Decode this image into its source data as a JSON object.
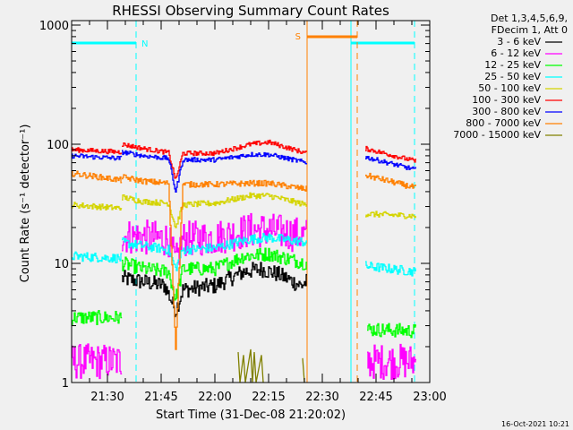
{
  "chart_data": {
    "type": "line",
    "title": "RHESSI Observing Summary Count Rates",
    "xlabel": "Start Time (31-Dec-08 21:20:02)",
    "ylabel": "Count Rate (s⁻¹ detector⁻¹)",
    "yscale": "log",
    "ylim": [
      1,
      1100
    ],
    "xlim_minutes_after_2120": [
      0,
      100
    ],
    "x_ticks": [
      {
        "t": 10,
        "label": "21:30"
      },
      {
        "t": 25,
        "label": "21:45"
      },
      {
        "t": 40,
        "label": "22:00"
      },
      {
        "t": 55,
        "label": "22:15"
      },
      {
        "t": 70,
        "label": "22:30"
      },
      {
        "t": 85,
        "label": "22:45"
      },
      {
        "t": 100,
        "label": "23:00"
      }
    ],
    "y_ticks": [
      {
        "v": 1,
        "label": "1"
      },
      {
        "v": 10,
        "label": "10"
      },
      {
        "v": 100,
        "label": "100"
      },
      {
        "v": 1000,
        "label": "1000"
      }
    ],
    "legend": {
      "placement": "right",
      "header": [
        "Det 1,3,4,5,6,9,",
        "FDecim 1, Att 0"
      ]
    },
    "series": [
      {
        "name": "3 - 6 keV",
        "color": "#000000",
        "noise": 0.07,
        "points": [
          [
            14,
            7.5
          ],
          [
            20,
            7
          ],
          [
            26,
            6.5
          ],
          [
            29,
            4
          ],
          [
            31,
            6
          ],
          [
            40,
            6.5
          ],
          [
            48,
            8.5
          ],
          [
            53,
            9
          ],
          [
            58,
            8
          ],
          [
            64,
            6.5
          ],
          [
            65.5,
            7
          ],
          null
        ]
      },
      {
        "name": "6 - 12 keV",
        "color": "#ff00ff",
        "noise": 0.15,
        "points": [
          [
            0,
            1.5
          ],
          [
            13.8,
            1.5
          ],
          null,
          [
            14,
            17
          ],
          [
            20,
            16.5
          ],
          [
            27,
            16
          ],
          [
            29,
            10
          ],
          [
            31,
            16
          ],
          [
            40,
            16.5
          ],
          [
            50,
            19
          ],
          [
            55,
            19
          ],
          [
            65.5,
            17
          ],
          null,
          [
            82.5,
            1.5
          ],
          [
            96,
            1.5
          ]
        ]
      },
      {
        "name": "12 - 25 keV",
        "color": "#00ff00",
        "noise": 0.06,
        "points": [
          [
            0,
            3.5
          ],
          [
            13.8,
            3.5
          ],
          null,
          [
            14,
            10
          ],
          [
            20,
            9
          ],
          [
            27,
            8.5
          ],
          [
            29,
            5
          ],
          [
            31,
            9
          ],
          [
            40,
            9
          ],
          [
            48,
            11.5
          ],
          [
            55,
            12
          ],
          [
            65.5,
            10
          ],
          null,
          [
            82.5,
            2.8
          ],
          [
            96,
            2.7
          ]
        ]
      },
      {
        "name": "25 - 50 keV",
        "color": "#00ffff",
        "noise": 0.04,
        "points": [
          [
            0,
            11.5
          ],
          [
            13.8,
            11
          ],
          null,
          [
            14,
            15
          ],
          [
            20,
            14
          ],
          [
            27,
            13
          ],
          [
            29,
            9
          ],
          [
            31,
            13
          ],
          [
            40,
            13.5
          ],
          [
            50,
            16
          ],
          [
            55,
            16.5
          ],
          [
            65.5,
            15
          ],
          null,
          [
            82,
            9.5
          ],
          [
            96,
            8.5
          ]
        ]
      },
      {
        "name": "50 - 100 keV",
        "color": "#d4d400",
        "noise": 0.025,
        "points": [
          [
            0,
            31
          ],
          [
            13.8,
            29
          ],
          null,
          [
            14,
            36
          ],
          [
            20,
            33
          ],
          [
            27,
            32
          ],
          [
            29,
            20
          ],
          [
            31,
            31
          ],
          [
            40,
            32
          ],
          [
            50,
            37
          ],
          [
            55,
            37
          ],
          [
            65.5,
            31
          ],
          null,
          [
            82,
            26
          ],
          [
            96,
            25
          ]
        ]
      },
      {
        "name": "100 - 300 keV",
        "color": "#ff0000",
        "noise": 0.02,
        "points": [
          [
            0,
            90
          ],
          [
            13.8,
            86
          ],
          null,
          [
            14,
            100
          ],
          [
            20,
            92
          ],
          [
            27,
            85
          ],
          [
            29,
            50
          ],
          [
            31,
            84
          ],
          [
            40,
            84
          ],
          [
            50,
            100
          ],
          [
            55,
            104
          ],
          [
            65.5,
            84
          ],
          null,
          [
            82,
            92
          ],
          [
            96,
            72
          ]
        ]
      },
      {
        "name": "300 - 800 keV",
        "color": "#0000ff",
        "noise": 0.02,
        "points": [
          [
            0,
            80
          ],
          [
            13.8,
            76
          ],
          null,
          [
            14,
            86
          ],
          [
            20,
            80
          ],
          [
            27,
            76
          ],
          [
            29,
            40
          ],
          [
            31,
            74
          ],
          [
            40,
            74
          ],
          [
            50,
            82
          ],
          [
            55,
            82
          ],
          [
            65.5,
            70
          ],
          null,
          [
            82,
            78
          ],
          [
            96,
            61
          ]
        ]
      },
      {
        "name": "800 - 7000 keV",
        "color": "#ff8000",
        "noise": 0.025,
        "points": [
          [
            0,
            57
          ],
          [
            13.8,
            50
          ],
          null,
          [
            14,
            53
          ],
          [
            20,
            49
          ],
          [
            27,
            47
          ],
          [
            29,
            2
          ],
          [
            31,
            46
          ],
          [
            40,
            46
          ],
          [
            50,
            47
          ],
          [
            55,
            47
          ],
          [
            65.5,
            42
          ],
          null,
          [
            82,
            55
          ],
          [
            96,
            43
          ]
        ]
      },
      {
        "name": "7000 - 15000 keV",
        "color": "#808000",
        "noise": 0.0,
        "points": [
          [
            46.5,
            1.8
          ],
          [
            47,
            0.9
          ],
          [
            48,
            1.7
          ],
          [
            48.5,
            0.9
          ],
          [
            50,
            1.9
          ],
          [
            50.5,
            0.9
          ],
          [
            51,
            1.8
          ],
          [
            51.5,
            0.9
          ],
          [
            53,
            1.7
          ],
          [
            53.5,
            0.9
          ],
          null,
          [
            64.5,
            1.6
          ],
          [
            65,
            0.9
          ]
        ]
      }
    ],
    "flags": [
      {
        "name": "night",
        "label": "N",
        "color": "#00ffff",
        "start": 0,
        "end": 18
      },
      {
        "name": "night",
        "label": "",
        "color": "#00ffff",
        "start": 78,
        "end": 95.75
      },
      {
        "name": "saa",
        "label": "S",
        "color": "#ff8000",
        "start": 65.75,
        "end": 79.75
      }
    ]
  },
  "footer": {
    "timestamp": "16-Oct-2021 10:21"
  }
}
